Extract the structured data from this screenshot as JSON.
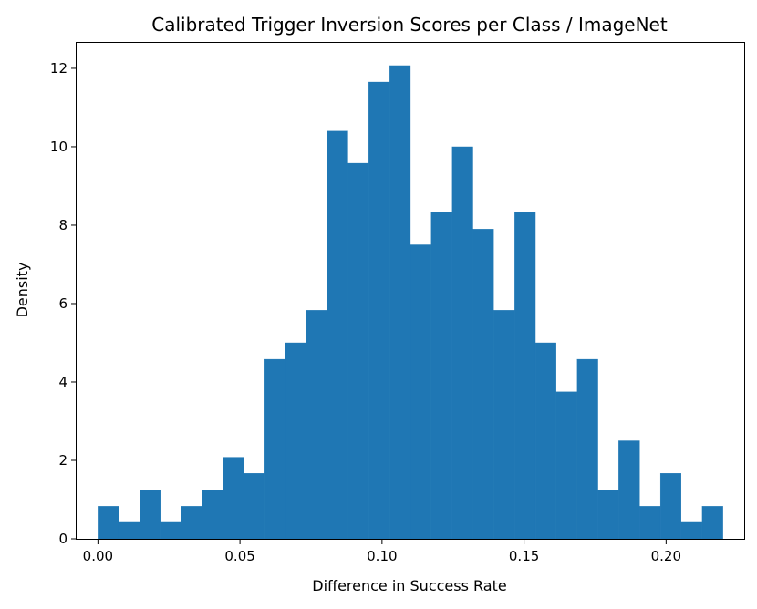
{
  "chart_data": {
    "type": "bar",
    "title": "Calibrated Trigger Inversion Scores per Class / ImageNet",
    "xlabel": "Difference in Success Rate",
    "ylabel": "Density",
    "bar_color": "#1f77b4",
    "grid": false,
    "xlim": [
      -0.0075,
      0.2275
    ],
    "ylim": [
      0,
      12.65
    ],
    "x_ticks": [
      0.0,
      0.05,
      0.1,
      0.15,
      0.2
    ],
    "x_tick_labels": [
      "0.00",
      "0.05",
      "0.10",
      "0.15",
      "0.20"
    ],
    "y_ticks": [
      0,
      2,
      4,
      6,
      8,
      10,
      12
    ],
    "y_tick_labels": [
      "0",
      "2",
      "4",
      "6",
      "8",
      "10",
      "12"
    ],
    "bin_edges": [
      0.0,
      0.0073,
      0.0147,
      0.022,
      0.0293,
      0.0367,
      0.044,
      0.0513,
      0.0587,
      0.066,
      0.0733,
      0.0807,
      0.088,
      0.0953,
      0.1027,
      0.11,
      0.1173,
      0.1247,
      0.132,
      0.1393,
      0.1467,
      0.154,
      0.1613,
      0.1687,
      0.176,
      0.1833,
      0.1907,
      0.198,
      0.2053,
      0.2127,
      0.22
    ],
    "values": [
      0.83,
      0.42,
      1.25,
      0.42,
      0.83,
      1.25,
      2.08,
      1.67,
      4.58,
      5.0,
      5.83,
      10.4,
      9.58,
      11.65,
      12.07,
      7.5,
      8.33,
      10.0,
      7.9,
      5.83,
      8.33,
      5.0,
      3.75,
      4.58,
      1.25,
      2.5,
      0.83,
      1.67,
      0.42,
      0.83
    ]
  }
}
